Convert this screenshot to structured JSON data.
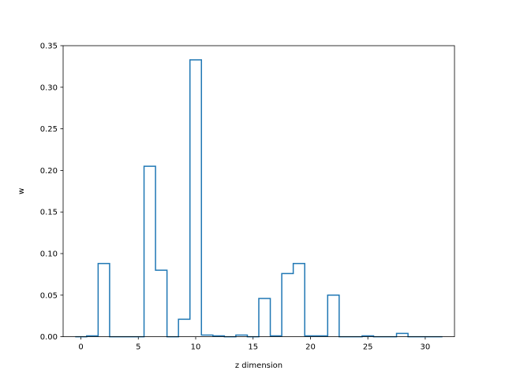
{
  "chart_data": {
    "type": "step",
    "xlabel": "z dimension",
    "ylabel": "w",
    "xlim": [
      -1.55,
      32.55
    ],
    "ylim": [
      0,
      0.35
    ],
    "x_ticks": [
      0,
      5,
      10,
      15,
      20,
      25,
      30
    ],
    "x_tick_labels": [
      "0",
      "5",
      "10",
      "15",
      "20",
      "25",
      "30"
    ],
    "y_ticks": [
      0.0,
      0.05,
      0.1,
      0.15,
      0.2,
      0.25,
      0.3,
      0.35
    ],
    "y_tick_labels": [
      "0.00",
      "0.05",
      "0.10",
      "0.15",
      "0.20",
      "0.25",
      "0.30",
      "0.35"
    ],
    "grid": false,
    "line_color": "#1f77b4",
    "x": [
      0,
      1,
      2,
      3,
      4,
      5,
      6,
      7,
      8,
      9,
      10,
      11,
      12,
      13,
      14,
      15,
      16,
      17,
      18,
      19,
      20,
      21,
      22,
      23,
      24,
      25,
      26,
      27,
      28,
      29,
      30,
      31
    ],
    "values": [
      0.0,
      0.001,
      0.088,
      0.0,
      0.0,
      0.0,
      0.205,
      0.08,
      0.0,
      0.021,
      0.333,
      0.002,
      0.001,
      0.0,
      0.002,
      0.0,
      0.046,
      0.001,
      0.076,
      0.088,
      0.001,
      0.001,
      0.05,
      0.0,
      0.0,
      0.001,
      0.0,
      0.0,
      0.004,
      0.0,
      0.0,
      0.0
    ]
  }
}
